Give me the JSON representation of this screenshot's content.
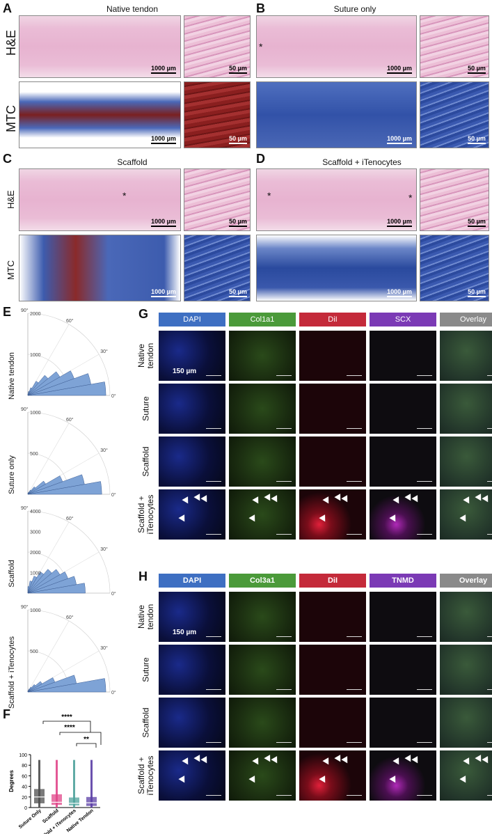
{
  "panels": {
    "A": {
      "letter": "A",
      "title": "Native tendon",
      "scale_large": "1000 µm",
      "scale_small": "50 µm"
    },
    "B": {
      "letter": "B",
      "title": "Suture only",
      "scale_large": "1000 µm",
      "scale_small": "50 µm"
    },
    "C": {
      "letter": "C",
      "title": "Scaffold",
      "scale_large": "1000 µm",
      "scale_small": "50 µm"
    },
    "D": {
      "letter": "D",
      "title": "Scaffold + iTenocytes",
      "scale_large": "1000 µm",
      "scale_small": "50 µm"
    }
  },
  "stains": {
    "he": "H&E",
    "mtc": "MTC"
  },
  "asterisk": "*",
  "panelE": {
    "letter": "E",
    "plots": [
      {
        "row_label": "Native tendon",
        "radial_ticks": [
          "1000",
          "2000"
        ],
        "angle_ticks": [
          "90°",
          "60°",
          "30°",
          "0°"
        ],
        "bins": [
          0.95,
          0.78,
          0.6,
          0.45,
          0.32,
          0.2,
          0.1,
          0.05,
          0.02
        ]
      },
      {
        "row_label": "Suture only",
        "radial_ticks": [
          "500",
          "1000"
        ],
        "angle_ticks": [
          "90°",
          "60°",
          "30°",
          "0°"
        ],
        "bins": [
          0.9,
          0.7,
          0.45,
          0.25,
          0.12,
          0.06,
          0.03,
          0.02,
          0.01
        ]
      },
      {
        "row_label": "Scaffold",
        "radial_ticks": [
          "1000",
          "2000",
          "3000",
          "4000"
        ],
        "angle_ticks": [
          "90°",
          "60°",
          "30°",
          "0°"
        ],
        "bins": [
          0.7,
          0.6,
          0.52,
          0.45,
          0.38,
          0.3,
          0.22,
          0.15,
          0.08
        ]
      },
      {
        "row_label": "Scaffold + iTenocytes",
        "radial_ticks": [
          "500",
          "1000"
        ],
        "angle_ticks": [
          "90°",
          "60°",
          "30°",
          "0°"
        ],
        "bins": [
          0.95,
          0.6,
          0.35,
          0.2,
          0.12,
          0.07,
          0.04,
          0.02,
          0.01
        ]
      }
    ]
  },
  "panelF": {
    "letter": "F",
    "ylabel": "Degrees",
    "y_ticks": [
      "0",
      "20",
      "40",
      "60",
      "80",
      "100"
    ],
    "sig": [
      "****",
      "****",
      "**"
    ],
    "categories": [
      "Suture Only",
      "Scaffold",
      "Scaffold + iTenocytes",
      "Native Tendon"
    ],
    "colors": [
      "#4d4d4d",
      "#e0478a",
      "#4fa39c",
      "#5b3fa6"
    ]
  },
  "chart_data": {
    "type": "box",
    "ylabel": "Degrees",
    "ylim": [
      0,
      100
    ],
    "categories": [
      "Suture Only",
      "Scaffold",
      "Scaffold + iTenocytes",
      "Native Tendon"
    ],
    "boxes": [
      {
        "q1": 8,
        "median": 20,
        "q3": 35,
        "whisker_low": 0,
        "whisker_high": 90
      },
      {
        "q1": 5,
        "median": 10,
        "q3": 25,
        "whisker_low": 0,
        "whisker_high": 90
      },
      {
        "q1": 4,
        "median": 8,
        "q3": 19,
        "whisker_low": 0,
        "whisker_high": 90
      },
      {
        "q1": 3,
        "median": 9,
        "q3": 20,
        "whisker_low": 0,
        "whisker_high": 90
      }
    ]
  },
  "panelG": {
    "letter": "G",
    "channels": [
      "DAPI",
      "Col1a1",
      "DiI",
      "SCX",
      "Overlay"
    ],
    "channel_colors": [
      "#3e6fc2",
      "#4b9a3a",
      "#c42a3a",
      "#7b3ab5",
      "#8a8a8a"
    ],
    "rows": [
      "Native tendon",
      "Suture",
      "Scaffold",
      "Scaffold + iTenocytes"
    ],
    "scale": "150 µm"
  },
  "panelH": {
    "letter": "H",
    "channels": [
      "DAPI",
      "Col3a1",
      "DiI",
      "TNMD",
      "Overlay"
    ],
    "channel_colors": [
      "#3e6fc2",
      "#4b9a3a",
      "#c42a3a",
      "#7b3ab5",
      "#8a8a8a"
    ],
    "rows": [
      "Native tendon",
      "Suture",
      "Scaffold",
      "Scaffold + iTenocytes"
    ],
    "scale": "150 µm"
  }
}
